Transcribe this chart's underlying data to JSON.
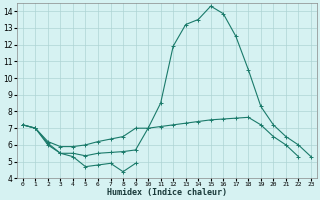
{
  "xlabel": "Humidex (Indice chaleur)",
  "x_values": [
    0,
    1,
    2,
    3,
    4,
    5,
    6,
    7,
    8,
    9,
    10,
    11,
    12,
    13,
    14,
    15,
    16,
    17,
    18,
    19,
    20,
    21,
    22,
    23
  ],
  "line1_y": [
    7.2,
    7.0,
    6.0,
    5.5,
    5.3,
    4.7,
    4.8,
    4.9,
    4.4,
    4.9,
    null,
    null,
    null,
    null,
    null,
    null,
    null,
    null,
    null,
    null,
    null,
    null,
    null,
    null
  ],
  "line2_y": [
    7.2,
    7.0,
    6.1,
    5.5,
    5.5,
    5.35,
    5.5,
    5.55,
    5.6,
    5.7,
    7.0,
    7.1,
    7.2,
    7.3,
    7.4,
    7.5,
    7.55,
    7.6,
    7.65,
    7.2,
    6.5,
    6.0,
    5.3,
    null
  ],
  "line3_y": [
    7.2,
    7.0,
    6.2,
    5.9,
    5.9,
    6.0,
    6.2,
    6.35,
    6.5,
    7.0,
    7.0,
    8.5,
    11.9,
    13.2,
    13.5,
    14.3,
    13.85,
    12.5,
    10.5,
    8.3,
    7.2,
    6.5,
    6.0,
    5.3
  ],
  "line_color": "#1a7a6a",
  "bg_color": "#d6f2f2",
  "grid_color": "#aed4d4",
  "ylim": [
    4,
    14.5
  ],
  "yticks": [
    4,
    5,
    6,
    7,
    8,
    9,
    10,
    11,
    12,
    13,
    14
  ],
  "xlim": [
    -0.5,
    23.5
  ],
  "figsize": [
    3.2,
    2.0
  ],
  "dpi": 100
}
